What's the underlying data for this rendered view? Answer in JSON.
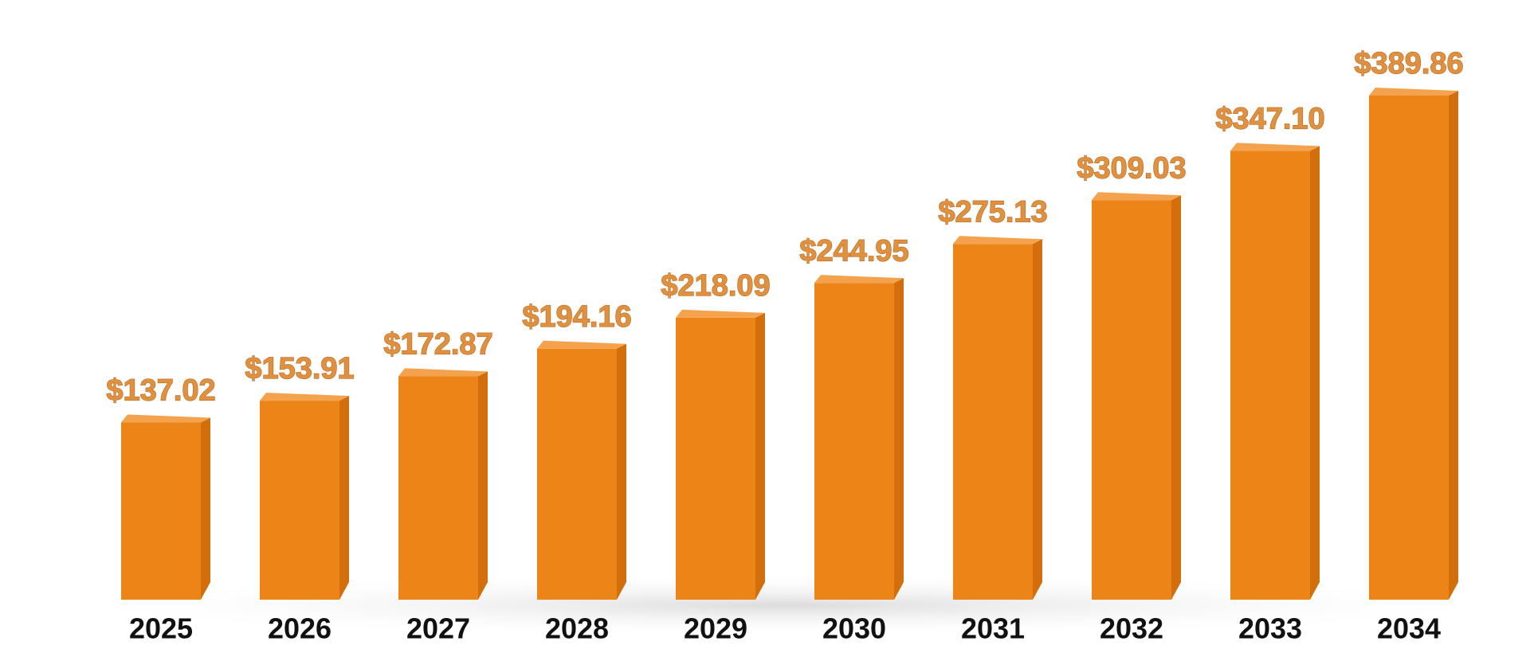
{
  "chart_data": {
    "type": "bar3d",
    "categories": [
      "2025",
      "2026",
      "2027",
      "2028",
      "2029",
      "2030",
      "2031",
      "2032",
      "2033",
      "2034"
    ],
    "values": [
      137.02,
      153.91,
      172.87,
      194.16,
      218.09,
      244.95,
      275.13,
      309.03,
      347.1,
      389.86
    ],
    "value_labels": [
      "$137.02",
      "$153.91",
      "$172.87",
      "$194.16",
      "$218.09",
      "$244.95",
      "$275.13",
      "$309.03",
      "$347.10",
      "$389.86"
    ],
    "color": "#ec8418"
  }
}
